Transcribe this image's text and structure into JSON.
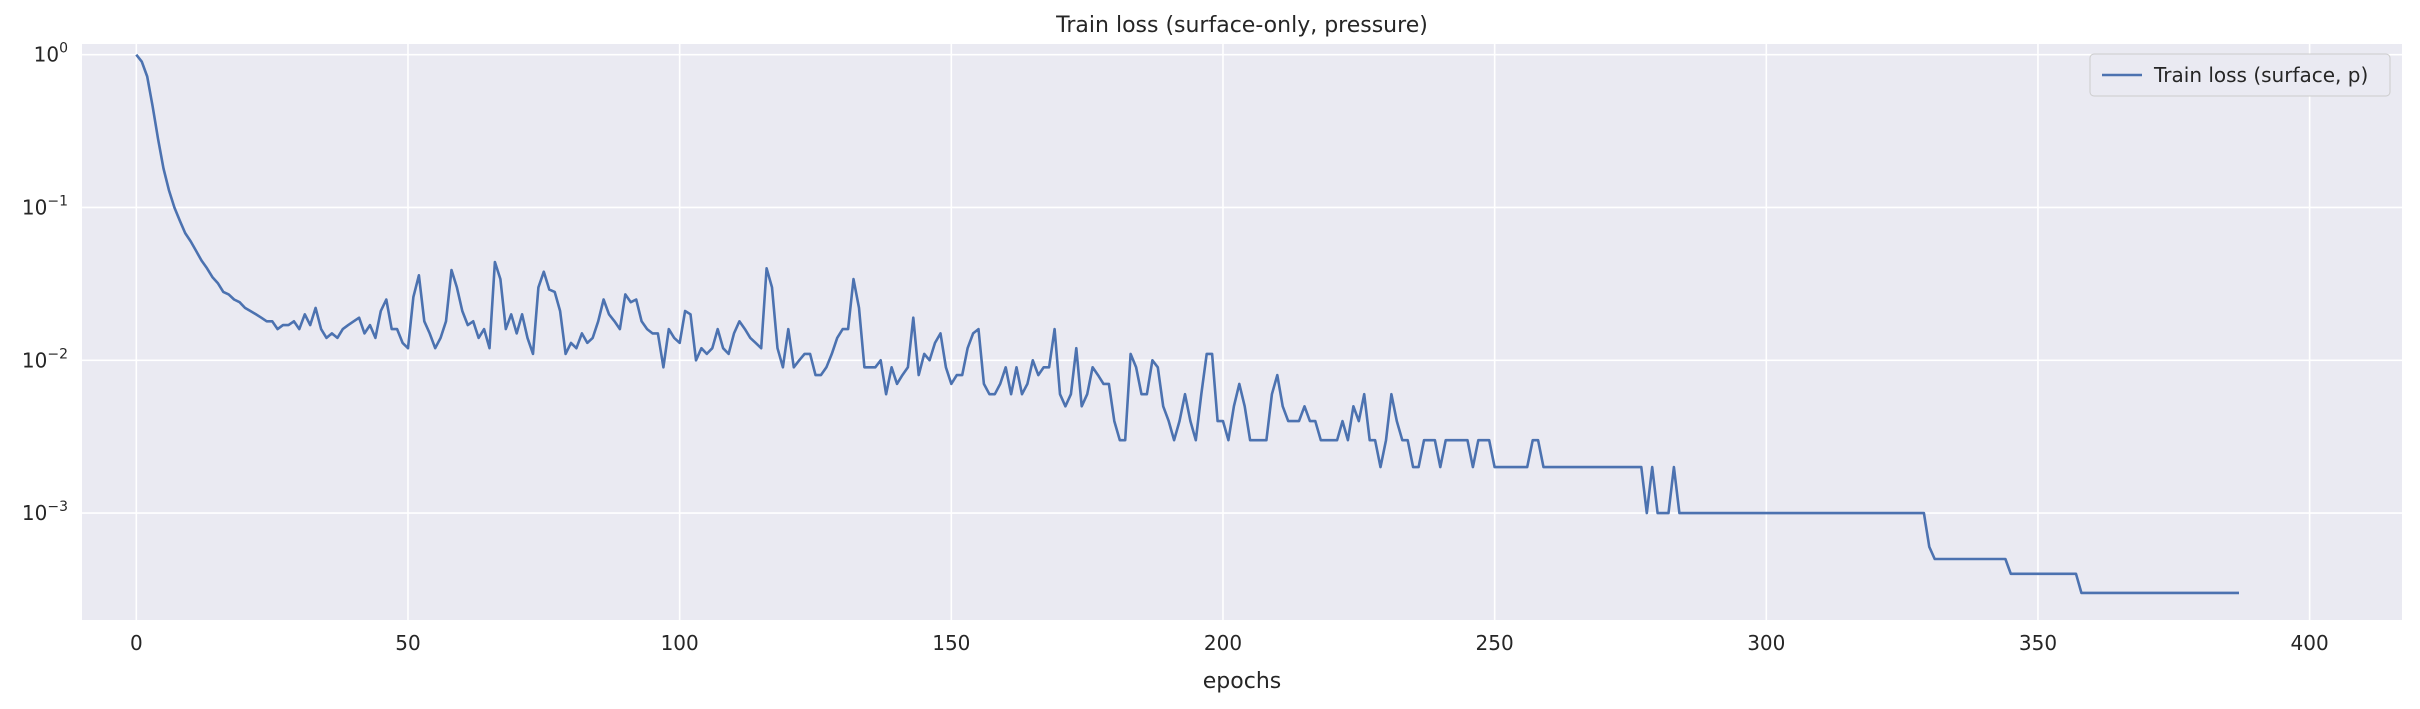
{
  "chart_data": {
    "type": "line",
    "title": "Train loss (surface-only, pressure)",
    "xlabel": "epochs",
    "ylabel": "",
    "yscale": "log",
    "xlim": [
      -10,
      417
    ],
    "ylim_log10": [
      -3.7,
      0.07
    ],
    "xticks": [
      0,
      50,
      100,
      150,
      200,
      250,
      300,
      350,
      400
    ],
    "xtick_labels": [
      "0",
      "50",
      "100",
      "150",
      "200",
      "250",
      "300",
      "350",
      "400"
    ],
    "yticks": [
      1,
      0.1,
      0.01,
      0.001
    ],
    "ytick_labels": [
      {
        "base": "10",
        "exp": "0"
      },
      {
        "base": "10",
        "exp": "−1"
      },
      {
        "base": "10",
        "exp": "−2"
      },
      {
        "base": "10",
        "exp": "−3"
      }
    ],
    "grid": true,
    "legend": {
      "position": "top-right",
      "entries": [
        "Train loss (surface, p)"
      ]
    },
    "colors": {
      "background": "#eaeaf2",
      "grid": "#ffffff",
      "line": "#4c72b0",
      "text": "#262626"
    },
    "series": [
      {
        "name": "Train loss (surface, p)",
        "values": [
          1.0,
          0.9,
          0.72,
          0.46,
          0.28,
          0.18,
          0.13,
          0.1,
          0.082,
          0.068,
          0.06,
          0.052,
          0.045,
          0.04,
          0.035,
          0.032,
          0.028,
          0.027,
          0.025,
          0.024,
          0.022,
          0.021,
          0.02,
          0.019,
          0.018,
          0.018,
          0.016,
          0.017,
          0.017,
          0.018,
          0.016,
          0.02,
          0.017,
          0.022,
          0.016,
          0.014,
          0.015,
          0.014,
          0.016,
          0.017,
          0.018,
          0.019,
          0.015,
          0.017,
          0.014,
          0.021,
          0.025,
          0.016,
          0.016,
          0.013,
          0.012,
          0.026,
          0.036,
          0.018,
          0.015,
          0.012,
          0.014,
          0.018,
          0.039,
          0.03,
          0.021,
          0.017,
          0.018,
          0.014,
          0.016,
          0.012,
          0.044,
          0.034,
          0.016,
          0.02,
          0.015,
          0.02,
          0.014,
          0.011,
          0.03,
          0.038,
          0.029,
          0.028,
          0.021,
          0.011,
          0.013,
          0.012,
          0.015,
          0.013,
          0.014,
          0.018,
          0.025,
          0.02,
          0.018,
          0.016,
          0.027,
          0.024,
          0.025,
          0.018,
          0.016,
          0.015,
          0.015,
          0.009,
          0.016,
          0.014,
          0.013,
          0.021,
          0.02,
          0.01,
          0.012,
          0.011,
          0.012,
          0.016,
          0.012,
          0.011,
          0.015,
          0.018,
          0.016,
          0.014,
          0.013,
          0.012,
          0.04,
          0.03,
          0.012,
          0.009,
          0.016,
          0.009,
          0.01,
          0.011,
          0.011,
          0.008,
          0.008,
          0.009,
          0.011,
          0.014,
          0.016,
          0.016,
          0.034,
          0.022,
          0.009,
          0.009,
          0.009,
          0.01,
          0.006,
          0.009,
          0.007,
          0.008,
          0.009,
          0.019,
          0.008,
          0.011,
          0.01,
          0.013,
          0.015,
          0.009,
          0.007,
          0.008,
          0.008,
          0.012,
          0.015,
          0.016,
          0.007,
          0.006,
          0.006,
          0.007,
          0.009,
          0.006,
          0.009,
          0.006,
          0.007,
          0.01,
          0.008,
          0.009,
          0.009,
          0.016,
          0.006,
          0.005,
          0.006,
          0.012,
          0.005,
          0.006,
          0.009,
          0.008,
          0.007,
          0.007,
          0.004,
          0.003,
          0.003,
          0.011,
          0.009,
          0.006,
          0.006,
          0.01,
          0.009,
          0.005,
          0.004,
          0.003,
          0.004,
          0.006,
          0.004,
          0.003,
          0.006,
          0.011,
          0.011,
          0.004,
          0.004,
          0.003,
          0.005,
          0.007,
          0.005,
          0.003,
          0.003,
          0.003,
          0.003,
          0.006,
          0.008,
          0.005,
          0.004,
          0.004,
          0.004,
          0.005,
          0.004,
          0.004,
          0.003,
          0.003,
          0.003,
          0.003,
          0.004,
          0.003,
          0.005,
          0.004,
          0.006,
          0.003,
          0.003,
          0.002,
          0.003,
          0.006,
          0.004,
          0.003,
          0.003,
          0.002,
          0.002,
          0.003,
          0.003,
          0.003,
          0.002,
          0.003,
          0.003,
          0.003,
          0.003,
          0.003,
          0.002,
          0.003,
          0.003,
          0.003,
          0.002,
          0.002,
          0.002,
          0.002,
          0.002,
          0.002,
          0.002,
          0.003,
          0.003,
          0.002,
          0.002,
          0.002,
          0.002,
          0.002,
          0.002,
          0.002,
          0.002,
          0.002,
          0.002,
          0.002,
          0.002,
          0.002,
          0.002,
          0.002,
          0.002,
          0.002,
          0.002,
          0.002,
          0.001,
          0.002,
          0.001,
          0.001,
          0.001,
          0.002,
          0.001,
          0.001,
          0.001,
          0.001,
          0.001,
          0.001,
          0.001,
          0.001,
          0.001,
          0.001,
          0.001,
          0.001,
          0.001,
          0.001,
          0.001,
          0.001,
          0.001,
          0.001,
          0.001,
          0.001,
          0.001,
          0.001,
          0.001,
          0.001,
          0.001,
          0.001,
          0.001,
          0.001,
          0.001,
          0.001,
          0.001,
          0.001,
          0.001,
          0.001,
          0.001,
          0.001,
          0.001,
          0.001,
          0.001,
          0.001,
          0.001,
          0.001,
          0.001,
          0.001,
          0.001,
          0.001,
          0.0006,
          0.0005,
          0.0005,
          0.0005,
          0.0005,
          0.0005,
          0.0005,
          0.0005,
          0.0005,
          0.0005,
          0.0005,
          0.0005,
          0.0005,
          0.0005,
          0.0005,
          0.0004,
          0.0004,
          0.0004,
          0.0004,
          0.0004,
          0.0004,
          0.0004,
          0.0004,
          0.0004,
          0.0004,
          0.0004,
          0.0004,
          0.0004,
          0.0003,
          0.0003,
          0.0003,
          0.0003,
          0.0003,
          0.0003,
          0.0003,
          0.0003,
          0.0003,
          0.0003,
          0.0003,
          0.0003,
          0.0003,
          0.0003,
          0.0003,
          0.0003,
          0.0003,
          0.0003,
          0.0003,
          0.0003,
          0.0003,
          0.0003,
          0.0003,
          0.0003,
          0.0003,
          0.0003,
          0.0003,
          0.0003,
          0.0003,
          0.0003
        ]
      }
    ]
  }
}
